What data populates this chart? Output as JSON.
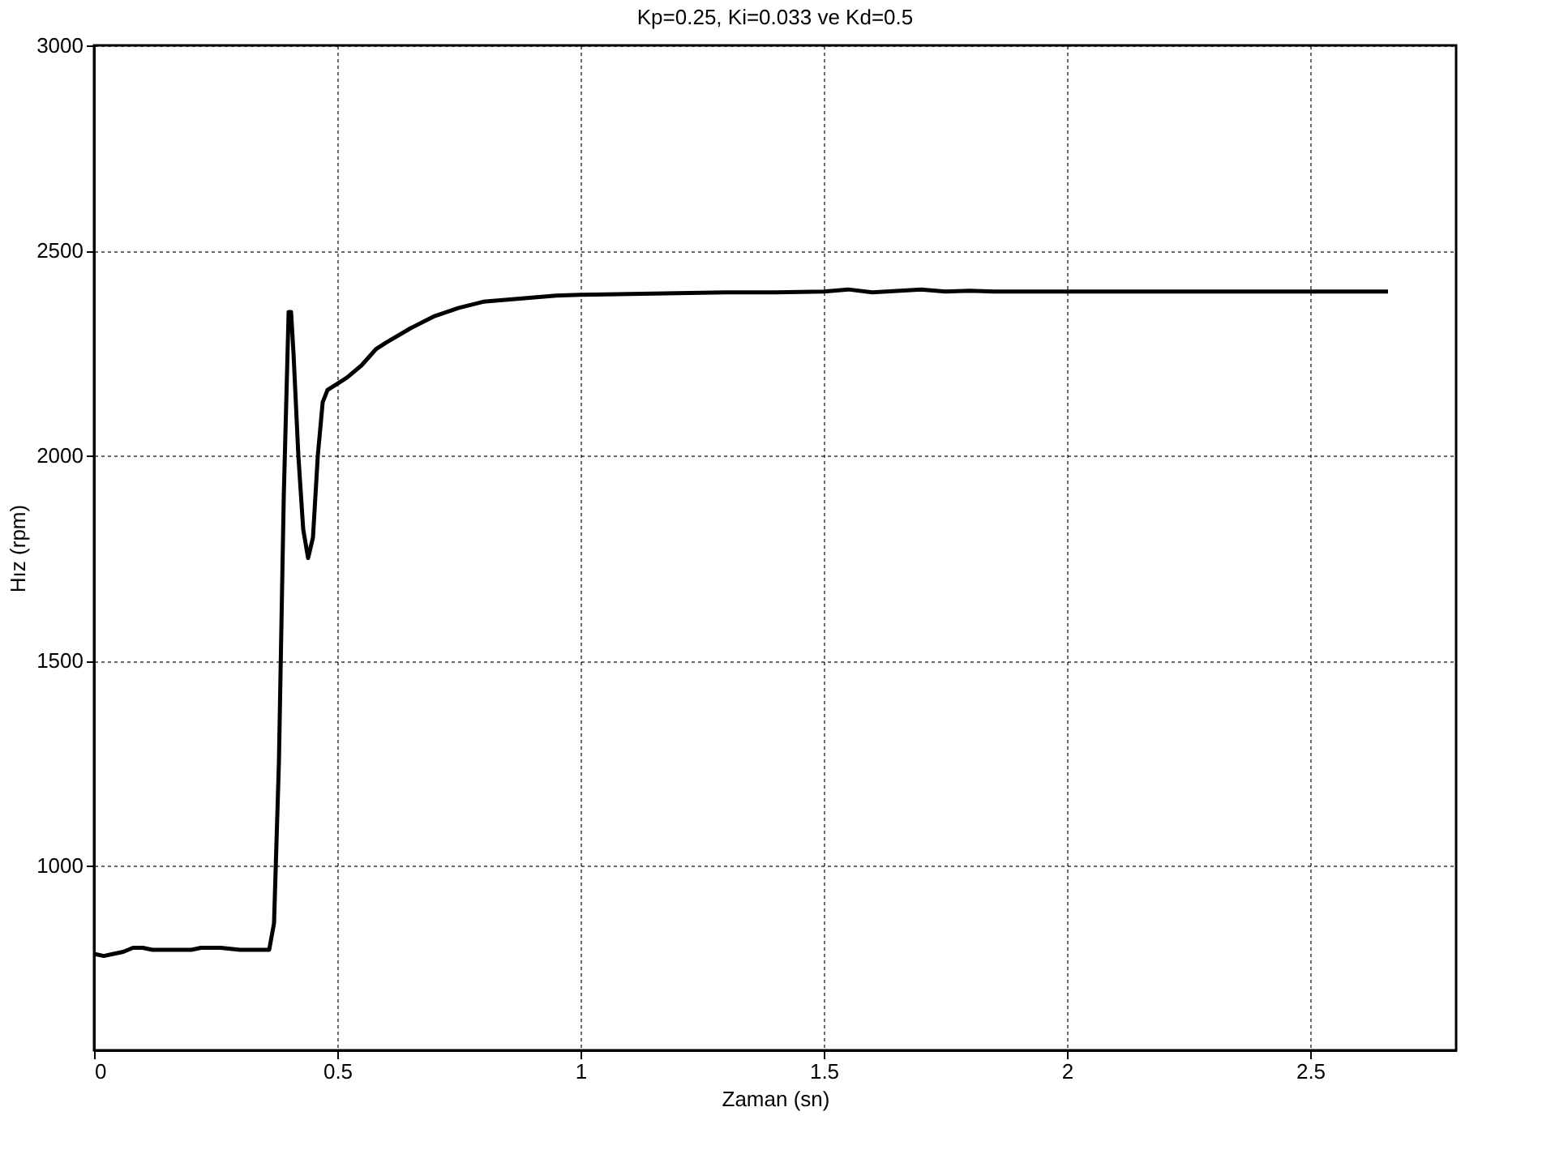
{
  "chart_data": {
    "type": "line",
    "title": "Kp=0.25, Ki=0.033 ve Kd=0.5",
    "xlabel": "Zaman (sn)",
    "ylabel": "Hız (rpm)",
    "series": [
      {
        "color": "#000000",
        "x": [
          0,
          0.02,
          0.04,
          0.06,
          0.08,
          0.1,
          0.12,
          0.14,
          0.2,
          0.22,
          0.26,
          0.3,
          0.32,
          0.36,
          0.37,
          0.38,
          0.39,
          0.4,
          0.405,
          0.41,
          0.42,
          0.43,
          0.44,
          0.45,
          0.46,
          0.47,
          0.48,
          0.5,
          0.52,
          0.55,
          0.58,
          0.6,
          0.65,
          0.7,
          0.75,
          0.8,
          0.85,
          0.9,
          0.95,
          1.0,
          1.2,
          1.3,
          1.4,
          1.5,
          1.55,
          1.6,
          1.7,
          1.75,
          1.8,
          1.85,
          2.0,
          2.3,
          2.66
        ],
        "values": [
          785,
          780,
          785,
          790,
          800,
          800,
          795,
          795,
          795,
          800,
          800,
          795,
          795,
          795,
          860,
          1250,
          1900,
          2350,
          2350,
          2250,
          2000,
          1820,
          1750,
          1800,
          2000,
          2130,
          2160,
          2175,
          2190,
          2220,
          2260,
          2275,
          2310,
          2340,
          2360,
          2375,
          2380,
          2385,
          2390,
          2392,
          2396,
          2398,
          2398,
          2400,
          2405,
          2398,
          2405,
          2400,
          2402,
          2400,
          2400,
          2400,
          2400
        ]
      }
    ],
    "xlim": [
      0,
      2.8
    ],
    "xticks": [
      0,
      0.5,
      1,
      1.5,
      2,
      2.5
    ],
    "ylim": [
      550,
      3000
    ],
    "yticks": [
      1000,
      1500,
      2000,
      2500,
      3000
    ],
    "grid": true,
    "line_style": "solid",
    "marker": "none"
  }
}
